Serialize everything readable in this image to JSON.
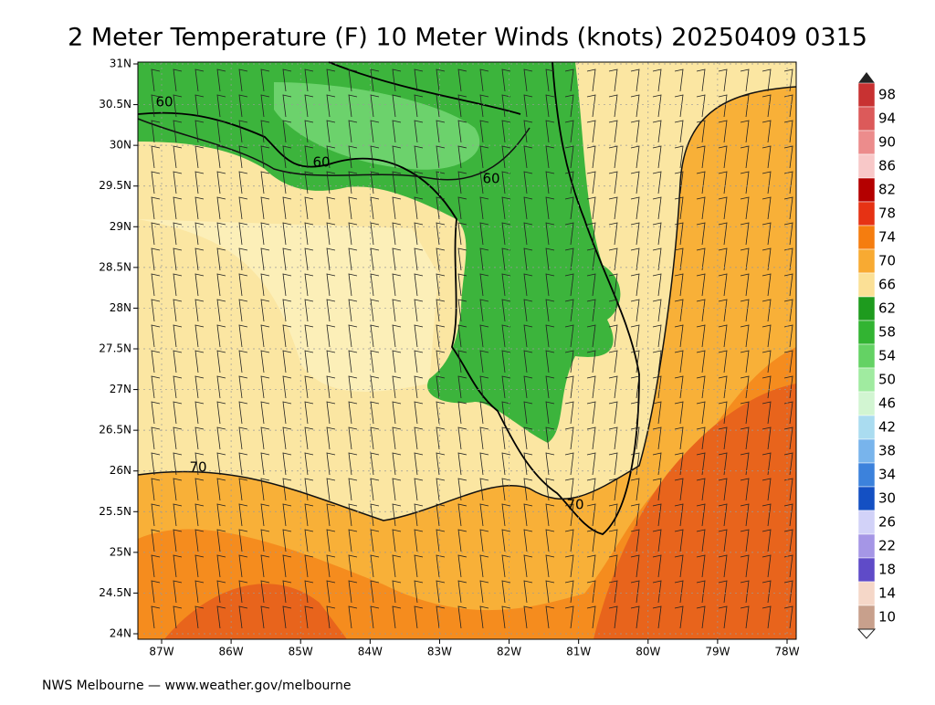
{
  "title": "2 Meter Temperature (F) 10 Meter Winds (knots) 20250409 0315",
  "footer": "NWS Melbourne — www.weather.gov/melbourne",
  "lat_labels": [
    "31N",
    "30.5N",
    "30N",
    "29.5N",
    "29N",
    "28.5N",
    "28N",
    "27.5N",
    "27N",
    "26.5N",
    "26N",
    "25.5N",
    "25N",
    "24.5N",
    "24N"
  ],
  "lon_labels": [
    "87W",
    "86W",
    "85W",
    "84W",
    "83W",
    "82W",
    "81W",
    "80W",
    "79W",
    "78W"
  ],
  "contour_labels": [
    "60",
    "60",
    "60",
    "70",
    "70"
  ],
  "colorbar": [
    {
      "value": 98,
      "color": "#c83232"
    },
    {
      "value": 94,
      "color": "#dc5a5a"
    },
    {
      "value": 90,
      "color": "#ec8c8c"
    },
    {
      "value": 86,
      "color": "#f8c8c8"
    },
    {
      "value": 82,
      "color": "#b40000"
    },
    {
      "value": 78,
      "color": "#e63214"
    },
    {
      "value": 74,
      "color": "#f57d0f"
    },
    {
      "value": 70,
      "color": "#f8aa32"
    },
    {
      "value": 66,
      "color": "#fbe096"
    },
    {
      "value": 62,
      "color": "#1e9b1e"
    },
    {
      "value": 58,
      "color": "#32b432"
    },
    {
      "value": 54,
      "color": "#64d264"
    },
    {
      "value": 50,
      "color": "#a0eba0"
    },
    {
      "value": 46,
      "color": "#d2f5d2"
    },
    {
      "value": 42,
      "color": "#aadcf0"
    },
    {
      "value": 38,
      "color": "#78b4ec"
    },
    {
      "value": 34,
      "color": "#3c82dc"
    },
    {
      "value": 30,
      "color": "#1450c3"
    },
    {
      "value": 26,
      "color": "#d2d2f8"
    },
    {
      "value": 22,
      "color": "#a596e6"
    },
    {
      "value": 18,
      "color": "#5f4bc8"
    },
    {
      "value": 14,
      "color": "#f5d7c8"
    },
    {
      "value": 10,
      "color": "#c8a08c"
    }
  ]
}
